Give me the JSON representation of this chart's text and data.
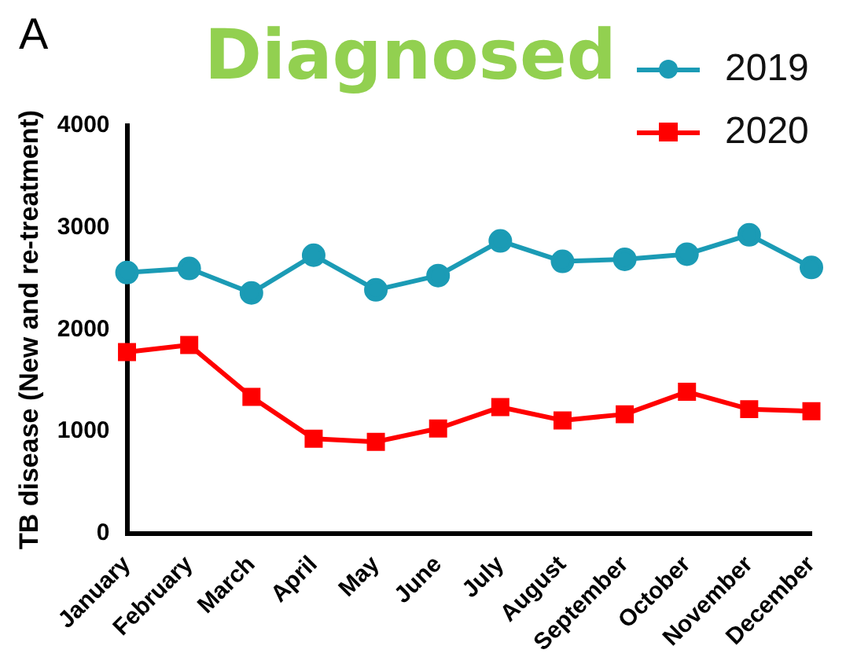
{
  "chart_data": {
    "type": "line",
    "title": "Diagnosed",
    "ylabel": "TB disease (New and re-treatment)",
    "annotations": [
      "A"
    ],
    "categories": [
      "January",
      "February",
      "March",
      "April",
      "May",
      "June",
      "July",
      "August",
      "September",
      "October",
      "November",
      "December"
    ],
    "series": [
      {
        "name": "2019",
        "color": "#1b9bb5",
        "marker": "circle",
        "values": [
          2560,
          2600,
          2360,
          2730,
          2390,
          2530,
          2870,
          2670,
          2690,
          2740,
          2930,
          2610
        ]
      },
      {
        "name": "2020",
        "color": "#ff0000",
        "marker": "square",
        "values": [
          1780,
          1850,
          1340,
          930,
          900,
          1030,
          1240,
          1110,
          1170,
          1390,
          1220,
          1200
        ]
      }
    ],
    "ylim": [
      0,
      4000
    ],
    "yticks": [
      0,
      1000,
      2000,
      3000,
      4000
    ],
    "grid": false,
    "legend": "top right"
  }
}
